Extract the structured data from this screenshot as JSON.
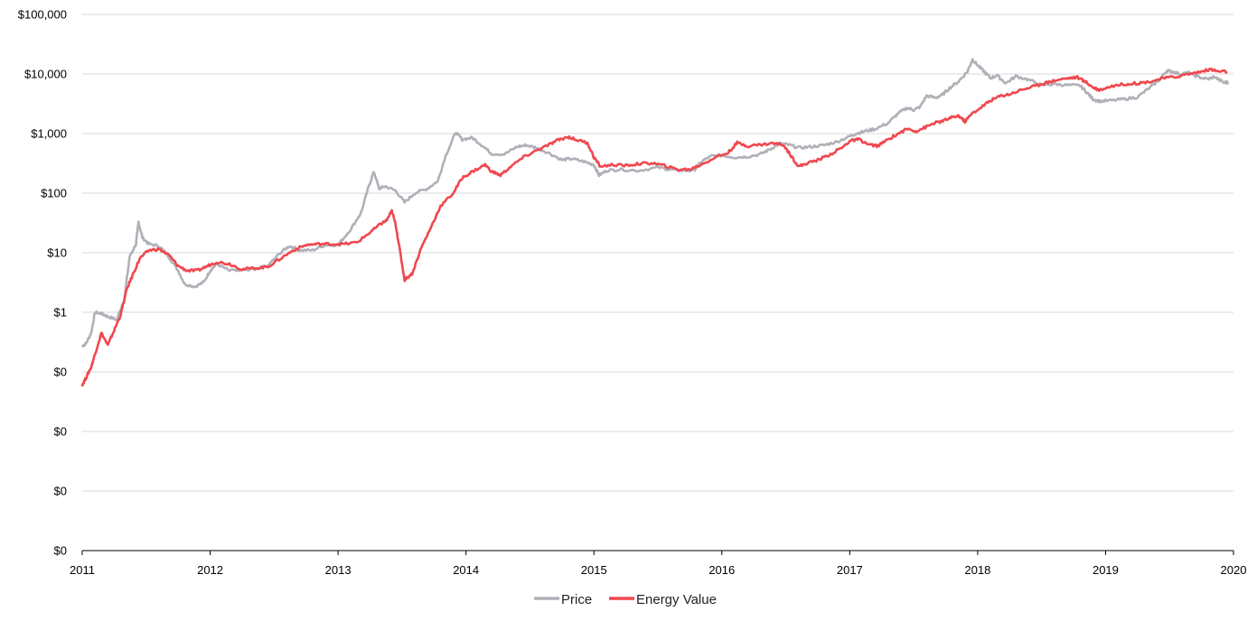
{
  "chart_data": {
    "type": "line",
    "title": "",
    "xlabel": "",
    "ylabel": "",
    "y_scale": "log",
    "ylim": [
      0.0001,
      100000
    ],
    "xlim": [
      2011,
      2020
    ],
    "y_ticks": [
      0.0001,
      0.001,
      0.01,
      0.1,
      1,
      10,
      100,
      1000,
      10000,
      100000
    ],
    "y_tick_labels": [
      "$0",
      "$0",
      "$0",
      "$0",
      "$1",
      "$10",
      "$100",
      "$1,000",
      "$10,000",
      "$100,000"
    ],
    "x_ticks": [
      2011,
      2012,
      2013,
      2014,
      2015,
      2016,
      2017,
      2018,
      2019,
      2020
    ],
    "x_tick_labels": [
      "2011",
      "2012",
      "2013",
      "2014",
      "2015",
      "2016",
      "2017",
      "2018",
      "2019",
      "2020"
    ],
    "grid": "horizontal",
    "legend_position": "bottom-center",
    "series": [
      {
        "name": "Price",
        "color": "#b0b0b8",
        "points": [
          [
            2011.0,
            0.27
          ],
          [
            2011.03,
            0.3
          ],
          [
            2011.07,
            0.45
          ],
          [
            2011.1,
            1.0
          ],
          [
            2011.15,
            0.95
          ],
          [
            2011.2,
            0.85
          ],
          [
            2011.27,
            0.75
          ],
          [
            2011.33,
            1.7
          ],
          [
            2011.37,
            8.5
          ],
          [
            2011.42,
            14
          ],
          [
            2011.44,
            33
          ],
          [
            2011.47,
            18
          ],
          [
            2011.52,
            14
          ],
          [
            2011.6,
            13
          ],
          [
            2011.67,
            9
          ],
          [
            2011.75,
            5
          ],
          [
            2011.8,
            3
          ],
          [
            2011.88,
            2.7
          ],
          [
            2011.95,
            3.2
          ],
          [
            2012.0,
            5
          ],
          [
            2012.05,
            6.5
          ],
          [
            2012.15,
            5
          ],
          [
            2012.3,
            5
          ],
          [
            2012.45,
            6
          ],
          [
            2012.55,
            10
          ],
          [
            2012.62,
            13
          ],
          [
            2012.7,
            11
          ],
          [
            2012.8,
            11
          ],
          [
            2012.9,
            13.5
          ],
          [
            2013.0,
            13.5
          ],
          [
            2013.1,
            25
          ],
          [
            2013.18,
            47
          ],
          [
            2013.24,
            130
          ],
          [
            2013.28,
            230
          ],
          [
            2013.32,
            120
          ],
          [
            2013.37,
            130
          ],
          [
            2013.45,
            110
          ],
          [
            2013.52,
            70
          ],
          [
            2013.6,
            100
          ],
          [
            2013.7,
            120
          ],
          [
            2013.78,
            160
          ],
          [
            2013.84,
            420
          ],
          [
            2013.92,
            1050
          ],
          [
            2013.97,
            800
          ],
          [
            2014.05,
            850
          ],
          [
            2014.12,
            650
          ],
          [
            2014.2,
            460
          ],
          [
            2014.3,
            450
          ],
          [
            2014.4,
            600
          ],
          [
            2014.47,
            640
          ],
          [
            2014.55,
            580
          ],
          [
            2014.65,
            470
          ],
          [
            2014.75,
            360
          ],
          [
            2014.82,
            380
          ],
          [
            2014.92,
            340
          ],
          [
            2015.0,
            300
          ],
          [
            2015.04,
            200
          ],
          [
            2015.1,
            240
          ],
          [
            2015.2,
            250
          ],
          [
            2015.35,
            240
          ],
          [
            2015.5,
            270
          ],
          [
            2015.6,
            250
          ],
          [
            2015.68,
            240
          ],
          [
            2015.78,
            240
          ],
          [
            2015.85,
            350
          ],
          [
            2015.92,
            420
          ],
          [
            2016.0,
            430
          ],
          [
            2016.1,
            400
          ],
          [
            2016.2,
            410
          ],
          [
            2016.3,
            450
          ],
          [
            2016.38,
            550
          ],
          [
            2016.45,
            680
          ],
          [
            2016.52,
            650
          ],
          [
            2016.6,
            580
          ],
          [
            2016.7,
            600
          ],
          [
            2016.8,
            640
          ],
          [
            2016.9,
            730
          ],
          [
            2017.0,
            900
          ],
          [
            2017.05,
            1000
          ],
          [
            2017.12,
            1100
          ],
          [
            2017.2,
            1200
          ],
          [
            2017.3,
            1500
          ],
          [
            2017.38,
            2200
          ],
          [
            2017.45,
            2700
          ],
          [
            2017.5,
            2500
          ],
          [
            2017.55,
            2800
          ],
          [
            2017.6,
            4300
          ],
          [
            2017.67,
            4000
          ],
          [
            2017.72,
            4400
          ],
          [
            2017.78,
            5800
          ],
          [
            2017.85,
            7500
          ],
          [
            2017.92,
            11000
          ],
          [
            2017.96,
            17500
          ],
          [
            2018.0,
            14000
          ],
          [
            2018.05,
            11000
          ],
          [
            2018.1,
            8500
          ],
          [
            2018.15,
            9500
          ],
          [
            2018.22,
            7000
          ],
          [
            2018.3,
            9200
          ],
          [
            2018.4,
            8000
          ],
          [
            2018.5,
            6500
          ],
          [
            2018.6,
            6800
          ],
          [
            2018.7,
            6500
          ],
          [
            2018.8,
            6400
          ],
          [
            2018.85,
            5000
          ],
          [
            2018.9,
            3800
          ],
          [
            2018.95,
            3500
          ],
          [
            2019.05,
            3600
          ],
          [
            2019.15,
            3800
          ],
          [
            2019.25,
            4100
          ],
          [
            2019.35,
            6000
          ],
          [
            2019.42,
            8000
          ],
          [
            2019.48,
            11500
          ],
          [
            2019.52,
            11000
          ],
          [
            2019.58,
            10000
          ],
          [
            2019.65,
            10500
          ],
          [
            2019.72,
            9000
          ],
          [
            2019.8,
            8200
          ],
          [
            2019.85,
            9000
          ],
          [
            2019.92,
            7200
          ],
          [
            2019.96,
            7200
          ]
        ]
      },
      {
        "name": "Energy Value",
        "color": "#f0474e",
        "points": [
          [
            2011.0,
            0.06
          ],
          [
            2011.03,
            0.08
          ],
          [
            2011.07,
            0.12
          ],
          [
            2011.1,
            0.2
          ],
          [
            2011.15,
            0.45
          ],
          [
            2011.2,
            0.28
          ],
          [
            2011.25,
            0.5
          ],
          [
            2011.3,
            0.9
          ],
          [
            2011.35,
            2.5
          ],
          [
            2011.4,
            4.5
          ],
          [
            2011.45,
            8
          ],
          [
            2011.52,
            11
          ],
          [
            2011.6,
            11.5
          ],
          [
            2011.68,
            9
          ],
          [
            2011.75,
            6
          ],
          [
            2011.82,
            5
          ],
          [
            2011.9,
            5
          ],
          [
            2011.98,
            6
          ],
          [
            2012.05,
            7
          ],
          [
            2012.15,
            6.5
          ],
          [
            2012.25,
            5.3
          ],
          [
            2012.35,
            5.5
          ],
          [
            2012.45,
            5.8
          ],
          [
            2012.55,
            8
          ],
          [
            2012.65,
            11
          ],
          [
            2012.75,
            13.5
          ],
          [
            2012.85,
            14
          ],
          [
            2012.95,
            14
          ],
          [
            2013.05,
            14
          ],
          [
            2013.15,
            15
          ],
          [
            2013.25,
            22
          ],
          [
            2013.33,
            30
          ],
          [
            2013.38,
            35
          ],
          [
            2013.42,
            50
          ],
          [
            2013.45,
            30
          ],
          [
            2013.48,
            12
          ],
          [
            2013.52,
            3.5
          ],
          [
            2013.58,
            4.5
          ],
          [
            2013.65,
            12
          ],
          [
            2013.72,
            25
          ],
          [
            2013.8,
            60
          ],
          [
            2013.9,
            100
          ],
          [
            2013.97,
            180
          ],
          [
            2014.05,
            230
          ],
          [
            2014.15,
            300
          ],
          [
            2014.2,
            230
          ],
          [
            2014.27,
            200
          ],
          [
            2014.35,
            280
          ],
          [
            2014.45,
            400
          ],
          [
            2014.55,
            520
          ],
          [
            2014.65,
            650
          ],
          [
            2014.72,
            780
          ],
          [
            2014.8,
            880
          ],
          [
            2014.85,
            800
          ],
          [
            2014.95,
            700
          ],
          [
            2015.0,
            400
          ],
          [
            2015.05,
            280
          ],
          [
            2015.15,
            300
          ],
          [
            2015.25,
            290
          ],
          [
            2015.35,
            310
          ],
          [
            2015.45,
            320
          ],
          [
            2015.55,
            290
          ],
          [
            2015.65,
            250
          ],
          [
            2015.75,
            250
          ],
          [
            2015.85,
            310
          ],
          [
            2015.95,
            400
          ],
          [
            2016.05,
            480
          ],
          [
            2016.12,
            700
          ],
          [
            2016.2,
            620
          ],
          [
            2016.3,
            650
          ],
          [
            2016.4,
            690
          ],
          [
            2016.48,
            650
          ],
          [
            2016.55,
            400
          ],
          [
            2016.6,
            280
          ],
          [
            2016.67,
            320
          ],
          [
            2016.75,
            360
          ],
          [
            2016.85,
            450
          ],
          [
            2016.95,
            600
          ],
          [
            2017.0,
            750
          ],
          [
            2017.07,
            800
          ],
          [
            2017.15,
            650
          ],
          [
            2017.22,
            620
          ],
          [
            2017.3,
            800
          ],
          [
            2017.38,
            1000
          ],
          [
            2017.45,
            1200
          ],
          [
            2017.52,
            1100
          ],
          [
            2017.6,
            1300
          ],
          [
            2017.66,
            1500
          ],
          [
            2017.72,
            1600
          ],
          [
            2017.78,
            1800
          ],
          [
            2017.85,
            2000
          ],
          [
            2017.9,
            1600
          ],
          [
            2017.96,
            2200
          ],
          [
            2018.05,
            3000
          ],
          [
            2018.1,
            3600
          ],
          [
            2018.18,
            4300
          ],
          [
            2018.25,
            4600
          ],
          [
            2018.35,
            5500
          ],
          [
            2018.45,
            6300
          ],
          [
            2018.52,
            7000
          ],
          [
            2018.6,
            7800
          ],
          [
            2018.7,
            8500
          ],
          [
            2018.78,
            8800
          ],
          [
            2018.85,
            7200
          ],
          [
            2018.9,
            6000
          ],
          [
            2018.95,
            5400
          ],
          [
            2019.05,
            6300
          ],
          [
            2019.15,
            6800
          ],
          [
            2019.25,
            7000
          ],
          [
            2019.35,
            7500
          ],
          [
            2019.45,
            8500
          ],
          [
            2019.55,
            9000
          ],
          [
            2019.65,
            10000
          ],
          [
            2019.75,
            11000
          ],
          [
            2019.82,
            12000
          ],
          [
            2019.88,
            11000
          ],
          [
            2019.95,
            11000
          ]
        ]
      }
    ]
  }
}
